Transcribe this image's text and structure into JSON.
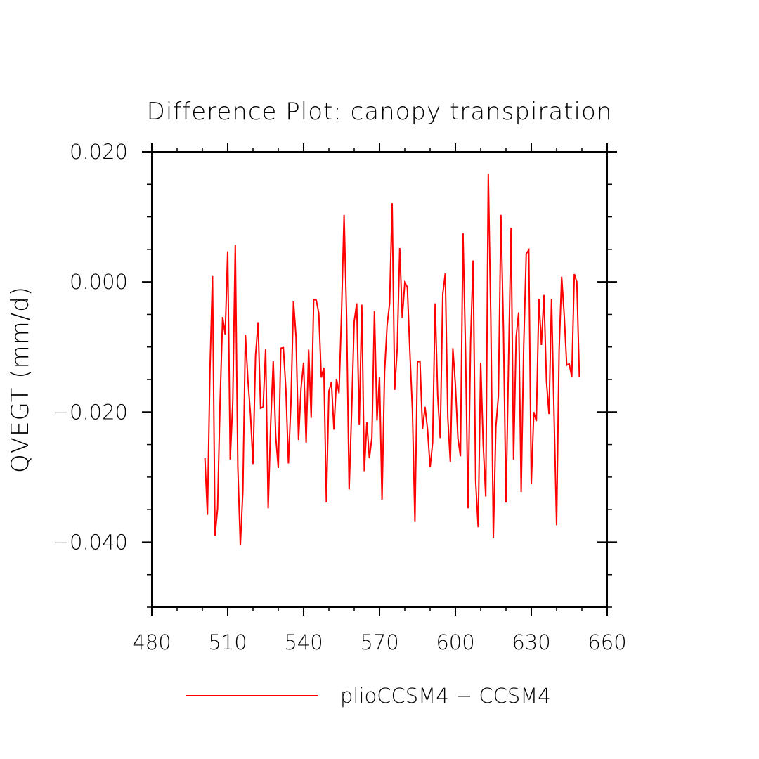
{
  "chart_data": {
    "type": "line",
    "title": "Difference Plot: canopy transpiration",
    "xlabel": "",
    "ylabel": "QVEGT  (mm/d)",
    "xlim": [
      480,
      660
    ],
    "ylim": [
      -0.05,
      0.02
    ],
    "x_ticks": [
      480,
      510,
      540,
      570,
      600,
      630,
      660
    ],
    "x_tick_labels": [
      "480",
      "510",
      "540",
      "570",
      "600",
      "630",
      "660"
    ],
    "y_ticks": [
      -0.04,
      -0.02,
      0.0,
      0.02
    ],
    "y_tick_labels": [
      "−0.040",
      "−0.020",
      "0.000",
      "0.020"
    ],
    "legend_position": "bottom-center",
    "grid": false,
    "series": [
      {
        "name": "plioCCSM4 − CCSM4",
        "color": "#ff0000",
        "x_start": 501,
        "x_step": 1,
        "values": [
          -0.0271,
          -0.0358,
          -0.0135,
          0.0009,
          -0.039,
          -0.0348,
          -0.0183,
          -0.0054,
          -0.0081,
          0.0047,
          -0.0273,
          -0.0185,
          0.0057,
          -0.0284,
          -0.0405,
          -0.0321,
          -0.0081,
          -0.0151,
          -0.0203,
          -0.028,
          -0.0114,
          -0.0062,
          -0.0194,
          -0.0192,
          -0.0103,
          -0.0348,
          -0.0217,
          -0.0122,
          -0.0238,
          -0.0286,
          -0.0102,
          -0.0101,
          -0.0165,
          -0.0279,
          -0.0186,
          -0.003,
          -0.0084,
          -0.0243,
          -0.0163,
          -0.0124,
          -0.0247,
          -0.0104,
          -0.0209,
          -0.0027,
          -0.0028,
          -0.0048,
          -0.0147,
          -0.0132,
          -0.0339,
          -0.0168,
          -0.0154,
          -0.0227,
          -0.0149,
          -0.0171,
          -0.0047,
          0.0103,
          -0.0054,
          -0.0319,
          -0.0198,
          -0.0061,
          -0.0033,
          -0.022,
          -0.0035,
          -0.0291,
          -0.0216,
          -0.0271,
          -0.0239,
          -0.0045,
          -0.0213,
          -0.0146,
          -0.0335,
          -0.0139,
          -0.0067,
          -0.0033,
          0.0121,
          -0.0166,
          -0.0103,
          0.0052,
          -0.0055,
          -0.0001,
          -0.0008,
          -0.0107,
          -0.0196,
          -0.0369,
          -0.0123,
          -0.0122,
          -0.0226,
          -0.0192,
          -0.0227,
          -0.0285,
          -0.0247,
          -0.0033,
          -0.0175,
          -0.024,
          -0.0019,
          0.0013,
          -0.0209,
          -0.0277,
          -0.0102,
          -0.0158,
          -0.024,
          -0.0268,
          0.0075,
          -0.0104,
          -0.0348,
          -0.0093,
          0.0033,
          -0.0306,
          -0.0377,
          -0.0124,
          -0.0251,
          -0.033,
          0.0166,
          -0.0056,
          -0.0393,
          -0.0223,
          -0.0175,
          0.0103,
          -0.0074,
          -0.0339,
          -0.0126,
          0.0083,
          -0.0273,
          -0.0085,
          -0.0047,
          -0.0323,
          -0.0099,
          0.0043,
          0.0049,
          -0.0311,
          -0.02,
          -0.0214,
          -0.0026,
          -0.0097,
          -0.002,
          -0.0153,
          -0.0203,
          -0.0026,
          -0.0205,
          -0.0374,
          -0.0105,
          0.0008,
          -0.005,
          -0.0128,
          -0.0126,
          -0.0146,
          0.0012,
          0.0,
          -0.0146
        ]
      }
    ]
  }
}
